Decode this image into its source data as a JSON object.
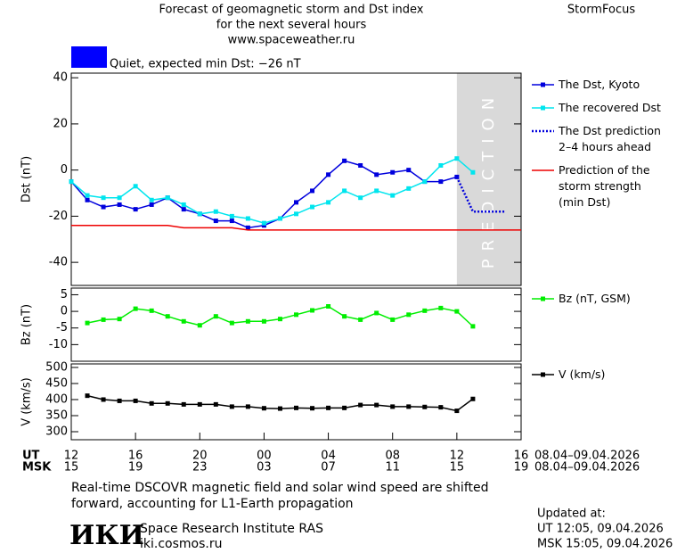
{
  "header": {
    "title_lines": [
      "Forecast of geomagnetic storm and Dst index",
      "for the next several hours",
      "www.spaceweather.ru"
    ],
    "brand": "StormFocus"
  },
  "status": {
    "color": "#0000ff",
    "label": "Quiet, expected min Dst: −26 nT"
  },
  "chart_data": [
    {
      "type": "line",
      "ylabel": "Dst (nT)",
      "xlim": [
        0,
        28
      ],
      "ylim": [
        -50,
        42
      ],
      "yticks": [
        -40,
        -20,
        0,
        20,
        40
      ],
      "shaded_region": {
        "x": [
          24,
          28
        ],
        "label": "PREDICTION",
        "color": "#d9d9d9"
      },
      "series": [
        {
          "name": "The Dst, Kyoto",
          "color": "#0000dd",
          "style": "solid",
          "marker": true,
          "x": [
            0,
            1,
            2,
            3,
            4,
            5,
            6,
            7,
            8,
            9,
            10,
            11,
            12,
            13,
            14,
            15,
            16,
            17,
            18,
            19,
            20,
            21,
            22,
            23,
            24
          ],
          "values": [
            -5,
            -13,
            -16,
            -15,
            -17,
            -15,
            -12,
            -17,
            -19,
            -22,
            -22,
            -25,
            -24,
            -21,
            -14,
            -9,
            -2,
            4,
            2,
            -2,
            -1,
            0,
            -5,
            -5,
            -3
          ]
        },
        {
          "name": "The recovered Dst",
          "color": "#00e5ee",
          "style": "solid",
          "marker": true,
          "x": [
            0,
            1,
            2,
            3,
            4,
            5,
            6,
            7,
            8,
            9,
            10,
            11,
            12,
            13,
            14,
            15,
            16,
            17,
            18,
            19,
            20,
            21,
            22,
            23,
            24,
            25
          ],
          "values": [
            -5,
            -11,
            -12,
            -12,
            -7,
            -13,
            -12,
            -15,
            -19,
            -18,
            -20,
            -21,
            -23,
            -21,
            -19,
            -16,
            -14,
            -9,
            -12,
            -9,
            -11,
            -8,
            -5,
            2,
            5,
            -1
          ]
        },
        {
          "name": "The Dst prediction\n2–4 hours ahead",
          "color": "#0000dd",
          "style": "dotted",
          "marker": false,
          "x": [
            24,
            25,
            26,
            27
          ],
          "values": [
            -3,
            -18,
            -18,
            -18
          ]
        },
        {
          "name": "Prediction of the\nstorm strength\n(min Dst)",
          "color": "#ee0000",
          "style": "solid",
          "marker": false,
          "x": [
            0,
            6,
            7,
            10,
            11,
            28
          ],
          "values": [
            -24,
            -24,
            -25,
            -25,
            -26,
            -26
          ]
        }
      ]
    },
    {
      "type": "line",
      "ylabel": "Bz (nT)",
      "xlim": [
        0,
        28
      ],
      "ylim": [
        -15,
        7
      ],
      "yticks": [
        5,
        0,
        -5,
        -10
      ],
      "series": [
        {
          "name": "Bz (nT, GSM)",
          "color": "#00ee00",
          "style": "solid",
          "marker": true,
          "x": [
            1,
            2,
            3,
            4,
            5,
            6,
            7,
            8,
            9,
            10,
            11,
            12,
            13,
            14,
            15,
            16,
            17,
            18,
            19,
            20,
            21,
            22,
            23,
            24,
            25
          ],
          "values": [
            -3.5,
            -2.5,
            -2.3,
            0.8,
            0.2,
            -1.5,
            -3,
            -4.2,
            -1.5,
            -3.5,
            -3,
            -3,
            -2.3,
            -1,
            0.3,
            1.5,
            -1.5,
            -2.5,
            -0.5,
            -2.5,
            -1,
            0.2,
            1,
            0,
            -4.5
          ]
        }
      ]
    },
    {
      "type": "line",
      "ylabel": "V (km/s)",
      "xlim": [
        0,
        28
      ],
      "ylim": [
        275,
        511
      ],
      "yticks": [
        500,
        450,
        400,
        350,
        300
      ],
      "xticks": [
        {
          "value": 0,
          "label": "12"
        },
        {
          "value": 4,
          "label": "16"
        },
        {
          "value": 8,
          "label": "20"
        },
        {
          "value": 12,
          "label": "00"
        },
        {
          "value": 16,
          "label": "04"
        },
        {
          "value": 20,
          "label": "08"
        },
        {
          "value": 24,
          "label": "12"
        },
        {
          "value": 28,
          "label": "16"
        }
      ],
      "xticks_msk": [
        {
          "value": 0,
          "label": "15"
        },
        {
          "value": 4,
          "label": "19"
        },
        {
          "value": 8,
          "label": "23"
        },
        {
          "value": 12,
          "label": "03"
        },
        {
          "value": 16,
          "label": "07"
        },
        {
          "value": 20,
          "label": "11"
        },
        {
          "value": 24,
          "label": "15"
        },
        {
          "value": 28,
          "label": "19"
        }
      ],
      "series": [
        {
          "name": "V (km/s)",
          "color": "#000000",
          "style": "solid",
          "marker": true,
          "x": [
            1,
            2,
            3,
            4,
            5,
            6,
            7,
            8,
            9,
            10,
            11,
            12,
            13,
            14,
            15,
            16,
            17,
            18,
            19,
            20,
            21,
            22,
            23,
            24,
            25
          ],
          "values": [
            412,
            400,
            396,
            396,
            388,
            388,
            385,
            385,
            385,
            378,
            378,
            373,
            372,
            374,
            373,
            374,
            374,
            383,
            383,
            378,
            378,
            377,
            376,
            365,
            402
          ]
        }
      ]
    }
  ],
  "time_axis": {
    "ut": "UT",
    "msk": "MSK",
    "ut_date": "08.04–09.04.2026",
    "msk_date": "08.04–09.04.2026"
  },
  "footer": {
    "note": "Real-time DSCOVR magnetic field and solar wind speed are shifted\nforward, accounting for L1-Earth propagation",
    "logo": "ИКИ",
    "institute": "Space Research Institute RAS",
    "url": "iki.cosmos.ru",
    "updated": "Updated at:",
    "updated_ut": "UT  12:05, 09.04.2026",
    "updated_msk": "MSK 15:05, 09.04.2026"
  }
}
